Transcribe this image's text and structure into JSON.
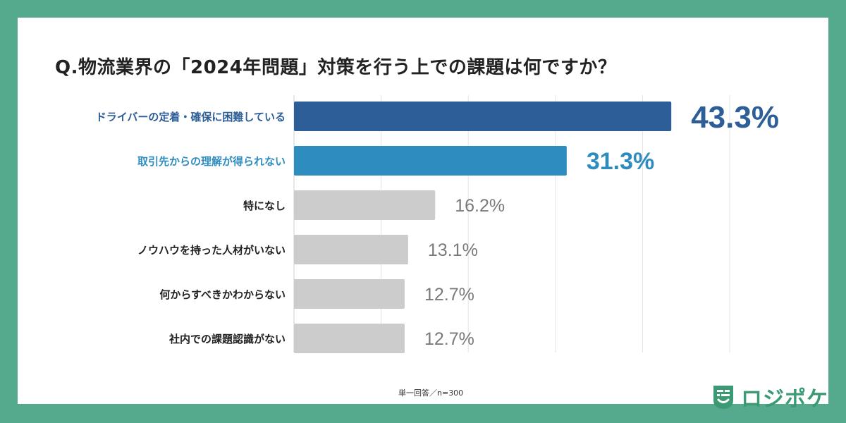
{
  "title": "Q.物流業界の「2024年問題」対策を行う上での課題は何ですか？",
  "note": "単一回答／n=300",
  "logo": {
    "text": "ロジポケ",
    "icon": "logo-mark-icon"
  },
  "colors": {
    "background": "#55a98c",
    "highlight_1": "#2d5e97",
    "highlight_2": "#2f8cbf",
    "neutral_bar": "#cccccc",
    "neutral_text": "#7a7a7a",
    "label_text": "#222222",
    "logo": "#3a9a73"
  },
  "chart_data": {
    "type": "bar",
    "orientation": "horizontal",
    "title": "Q.物流業界の「2024年問題」対策を行う上での課題は何ですか？",
    "unit": "%",
    "xlim": [
      0,
      50
    ],
    "grid": true,
    "categories": [
      "ドライバーの定着・確保に困難している",
      "取引先からの理解が得られない",
      "特になし",
      "ノウハウを持った人材がいない",
      "何からすべきかわからない",
      "社内での課題認識がない"
    ],
    "values": [
      43.3,
      31.3,
      16.2,
      13.1,
      12.7,
      12.7
    ],
    "value_labels": [
      "43.3%",
      "31.3%",
      "16.2%",
      "13.1%",
      "12.7%",
      "12.7%"
    ],
    "highlight": [
      "highlight_1",
      "highlight_2",
      "neutral",
      "neutral",
      "neutral",
      "neutral"
    ]
  }
}
